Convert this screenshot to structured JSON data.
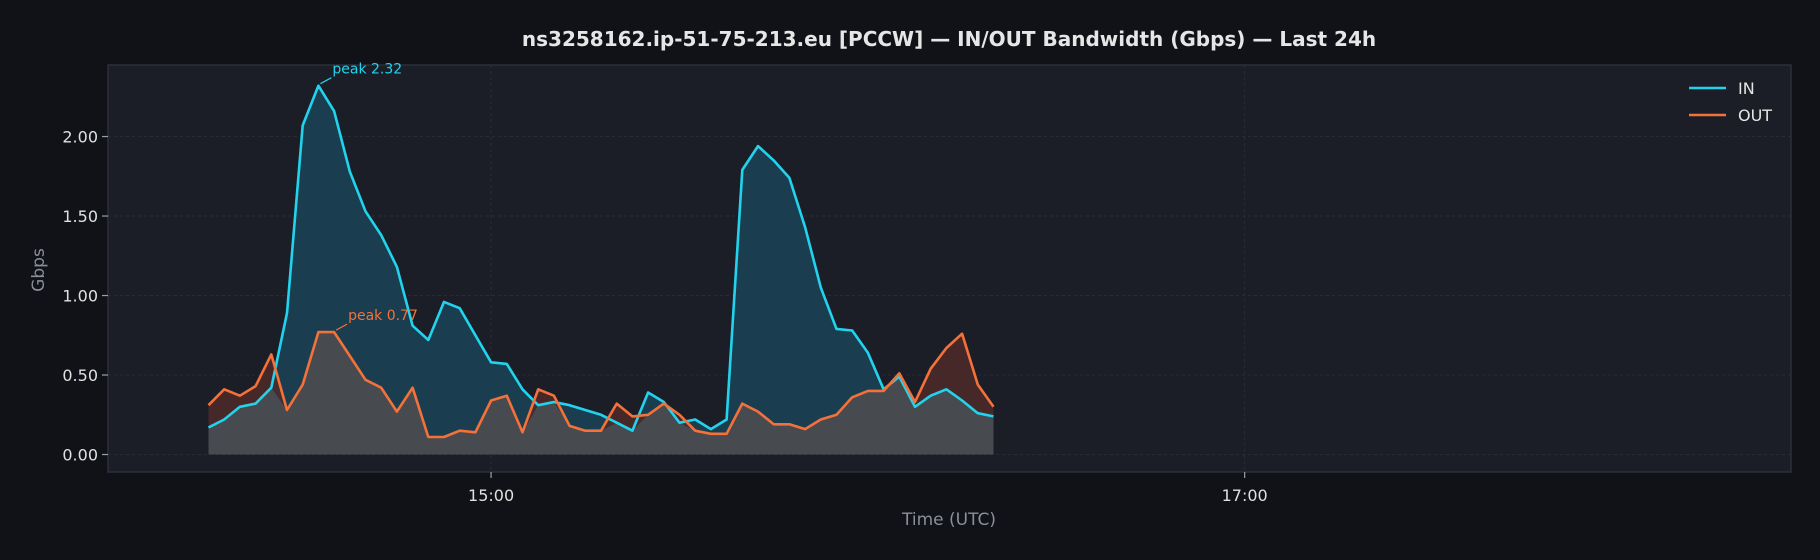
{
  "chart_data": {
    "type": "area",
    "title": "ns3258162.ip-51-75-213.eu [PCCW] — IN/OUT Bandwidth (Gbps) — Last 24h",
    "xlabel": "Time (UTC)",
    "ylabel": "Gbps",
    "x_ticks": [
      {
        "label": "15:00",
        "at_minutes": 900
      },
      {
        "label": "17:00",
        "at_minutes": 1020
      }
    ],
    "x_start_minutes": 855,
    "x_step_minutes": 2.5,
    "x_range_minutes": [
      839,
      1107
    ],
    "y_ticks": [
      "0.00",
      "0.50",
      "1.00",
      "1.50",
      "2.00"
    ],
    "y_tick_values": [
      0,
      0.5,
      1.0,
      1.5,
      2.0
    ],
    "ylim": [
      -0.11,
      2.45
    ],
    "grid": true,
    "legend_position": "top-right",
    "series": [
      {
        "name": "IN",
        "color": "#22d3ee",
        "fill": "#1a4457",
        "values": [
          0.17,
          0.22,
          0.3,
          0.32,
          0.42,
          0.89,
          2.07,
          2.32,
          2.16,
          1.78,
          1.53,
          1.38,
          1.18,
          0.81,
          0.72,
          0.96,
          0.92,
          0.75,
          0.58,
          0.57,
          0.41,
          0.31,
          0.33,
          0.31,
          0.28,
          0.25,
          0.2,
          0.15,
          0.39,
          0.33,
          0.2,
          0.22,
          0.16,
          0.22,
          1.79,
          1.94,
          1.85,
          1.74,
          1.43,
          1.05,
          0.79,
          0.78,
          0.64,
          0.41,
          0.49,
          0.3,
          0.37,
          0.41,
          0.34,
          0.26,
          0.24
        ]
      },
      {
        "name": "OUT",
        "color": "#f4713a",
        "fill": "#4d2a2a",
        "values": [
          0.31,
          0.41,
          0.37,
          0.43,
          0.63,
          0.28,
          0.44,
          0.77,
          0.77,
          0.62,
          0.47,
          0.42,
          0.27,
          0.42,
          0.11,
          0.11,
          0.15,
          0.14,
          0.34,
          0.37,
          0.14,
          0.41,
          0.37,
          0.18,
          0.15,
          0.15,
          0.32,
          0.24,
          0.25,
          0.32,
          0.25,
          0.15,
          0.13,
          0.13,
          0.32,
          0.27,
          0.19,
          0.19,
          0.16,
          0.22,
          0.25,
          0.36,
          0.4,
          0.4,
          0.51,
          0.33,
          0.54,
          0.67,
          0.76,
          0.44,
          0.3
        ]
      }
    ],
    "annotations": [
      {
        "series": "IN",
        "text": "peak 2.32",
        "index": 7
      },
      {
        "series": "OUT",
        "text": "peak 0.77",
        "index": 8
      }
    ]
  }
}
